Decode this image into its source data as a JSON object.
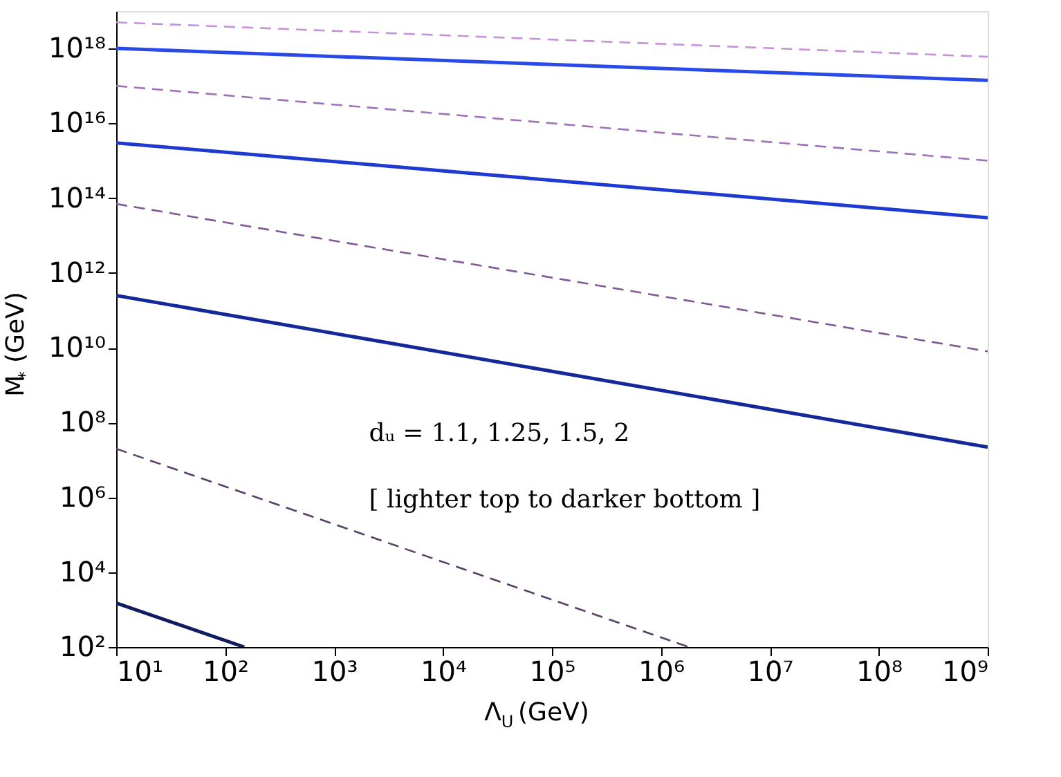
{
  "chart_data": {
    "type": "line",
    "xlabel": "Λ$_{U}$ (GeV)",
    "ylabel": "M$_{*}$ (GeV)",
    "log": "xy",
    "grid": false,
    "legend": false,
    "xlim": [
      10,
      1000000000
    ],
    "ylim": [
      100,
      10000000000000000000
    ],
    "xticks": [
      {
        "value": 10,
        "label": "10¹"
      },
      {
        "value": 100,
        "label": "10²"
      },
      {
        "value": 1000,
        "label": "10³"
      },
      {
        "value": 10000,
        "label": "10⁴"
      },
      {
        "value": 100000,
        "label": "10⁵"
      },
      {
        "value": 1000000,
        "label": "10⁶"
      },
      {
        "value": 10000000,
        "label": "10⁷"
      },
      {
        "value": 100000000,
        "label": "10⁸"
      },
      {
        "value": 1000000000,
        "label": "10⁹"
      }
    ],
    "yticks": [
      {
        "value": 100,
        "label": "10²"
      },
      {
        "value": 10000,
        "label": "10⁴"
      },
      {
        "value": 1000000,
        "label": "10⁶"
      },
      {
        "value": 100000000,
        "label": "10⁸"
      },
      {
        "value": 10000000000,
        "label": "10¹⁰"
      },
      {
        "value": 1000000000000,
        "label": "10¹²"
      },
      {
        "value": 100000000000000,
        "label": "10¹⁴"
      },
      {
        "value": 10000000000000000,
        "label": "10¹⁶"
      },
      {
        "value": 1000000000000000000,
        "label": "10¹⁸"
      }
    ],
    "annotations": [
      "dᵤ = 1.1, 1.25, 1.5, 2",
      "[ lighter   top   to darker   bottom ]"
    ],
    "series": [
      {
        "color": "#c890d8",
        "line_style": "dashed",
        "x": [
          10,
          1000000000
        ],
        "values": [
          5e+18,
          6e+17
        ]
      },
      {
        "color": "#2a4ae8",
        "line_style": "solid",
        "x": [
          10,
          1000000000
        ],
        "values": [
          1e+18,
          1.4e+17
        ]
      },
      {
        "color": "#a070b8",
        "line_style": "dashed",
        "x": [
          10,
          1000000000
        ],
        "values": [
          1e+17,
          1000000000000000.0
        ]
      },
      {
        "color": "#1e3ad0",
        "line_style": "solid",
        "x": [
          10,
          1000000000
        ],
        "values": [
          3000000000000000.0,
          30000000000000.0
        ]
      },
      {
        "color": "#805898",
        "line_style": "dashed",
        "x": [
          10,
          1000000000
        ],
        "values": [
          70000000000000.0,
          8000000000.0
        ]
      },
      {
        "color": "#14289a",
        "line_style": "solid",
        "x": [
          10,
          1000000000
        ],
        "values": [
          250000000000.0,
          22000000.0
        ]
      },
      {
        "color": "#584068",
        "line_style": "dashed",
        "x": [
          10,
          1800000
        ],
        "values": [
          20000000.0,
          100
        ]
      },
      {
        "color": "#101c60",
        "line_style": "solid",
        "x": [
          10,
          150
        ],
        "values": [
          1500,
          100
        ]
      }
    ]
  }
}
